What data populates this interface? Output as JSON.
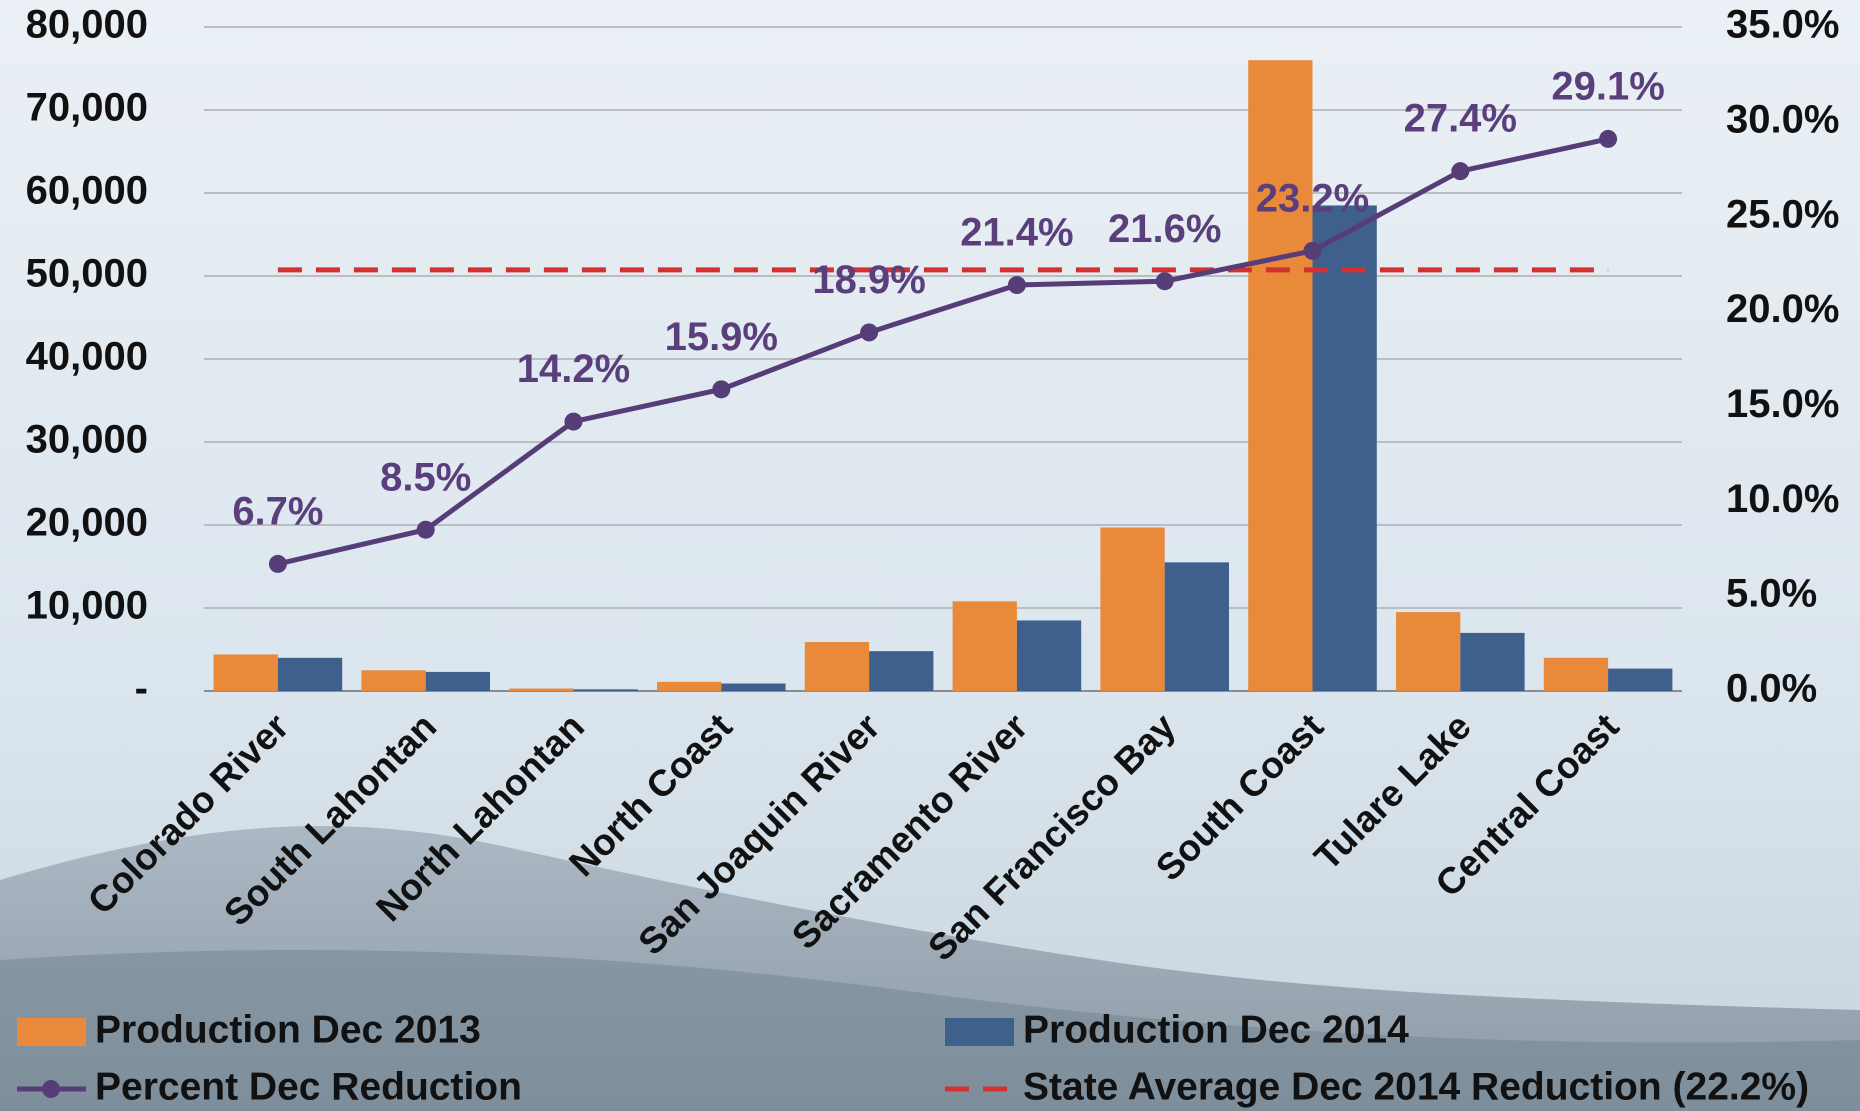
{
  "chart_data": {
    "type": "bar-line",
    "categories": [
      "Colorado River",
      "South Lahontan",
      "North Lahontan",
      "North Coast",
      "San Joaquin River",
      "Sacramento River",
      "San Francisco Bay",
      "South Coast",
      "Tulare Lake",
      "Central Coast"
    ],
    "series": [
      {
        "name": "Production Dec 2013",
        "type": "bar",
        "color": "#e98a3b",
        "values": [
          4400,
          2500,
          300,
          1100,
          5900,
          10800,
          19700,
          76000,
          9500,
          4000
        ]
      },
      {
        "name": "Production Dec 2014",
        "type": "bar",
        "color": "#3f5f8d",
        "values": [
          4000,
          2300,
          200,
          900,
          4800,
          8500,
          15500,
          58500,
          7000,
          2700
        ]
      },
      {
        "name": "Percent Dec Reduction",
        "type": "line",
        "axis": "y2",
        "color": "#563d78",
        "values": [
          6.7,
          8.5,
          14.2,
          15.9,
          18.9,
          21.4,
          21.6,
          23.2,
          27.4,
          29.1
        ],
        "value_labels": [
          "6.7%",
          "8.5%",
          "14.2%",
          "15.9%",
          "18.9%",
          "21.4%",
          "21.6%",
          "23.2%",
          "27.4%",
          "29.1%"
        ]
      },
      {
        "name": "State Average Dec 2014 Reduction (22.2%)",
        "type": "dashed",
        "axis": "y2",
        "color": "#d3302f",
        "value": 22.2
      }
    ],
    "ylim": [
      0,
      80000
    ],
    "yticks": [
      {
        "value": 0,
        "label": "-"
      },
      {
        "value": 10000,
        "label": "10,000"
      },
      {
        "value": 20000,
        "label": "20,000"
      },
      {
        "value": 30000,
        "label": "30,000"
      },
      {
        "value": 40000,
        "label": "40,000"
      },
      {
        "value": 50000,
        "label": "50,000"
      },
      {
        "value": 60000,
        "label": "60,000"
      },
      {
        "value": 70000,
        "label": "70,000"
      },
      {
        "value": 80000,
        "label": "80,000"
      }
    ],
    "y2lim": [
      0,
      35
    ],
    "y2ticks": [
      {
        "value": 0,
        "label": "0.0%"
      },
      {
        "value": 5,
        "label": "5.0%"
      },
      {
        "value": 10,
        "label": "10.0%"
      },
      {
        "value": 15,
        "label": "15.0%"
      },
      {
        "value": 20,
        "label": "20.0%"
      },
      {
        "value": 25,
        "label": "25.0%"
      },
      {
        "value": 30,
        "label": "30.0%"
      },
      {
        "value": 35,
        "label": "35.0%"
      }
    ],
    "grid": true
  }
}
